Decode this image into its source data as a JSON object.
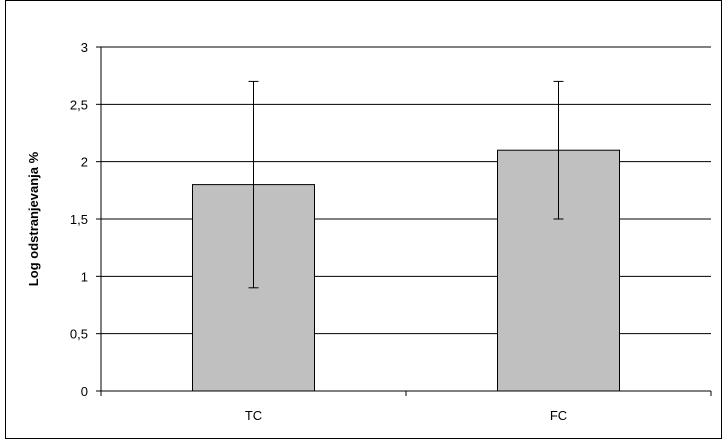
{
  "chart_data": {
    "type": "bar",
    "title": "",
    "xlabel": "",
    "ylabel": "Log odstranjevanja %",
    "categories": [
      "TC",
      "FC"
    ],
    "values": [
      1.8,
      2.1
    ],
    "error_bars": [
      {
        "low": 0.9,
        "high": 2.7
      },
      {
        "low": 1.5,
        "high": 2.7
      }
    ],
    "ylim": [
      0,
      3
    ],
    "y_ticks": [
      0,
      0.5,
      1,
      1.5,
      2,
      2.5,
      3
    ],
    "y_tick_labels": [
      "0",
      "0,5",
      "1",
      "1,5",
      "2",
      "2,5",
      "3"
    ],
    "grid": true,
    "legend": "none",
    "colors": {
      "bar_fill": "#c0c0c0",
      "bar_stroke": "#000000",
      "grid": "#000000",
      "error_bar": "#000000"
    }
  }
}
